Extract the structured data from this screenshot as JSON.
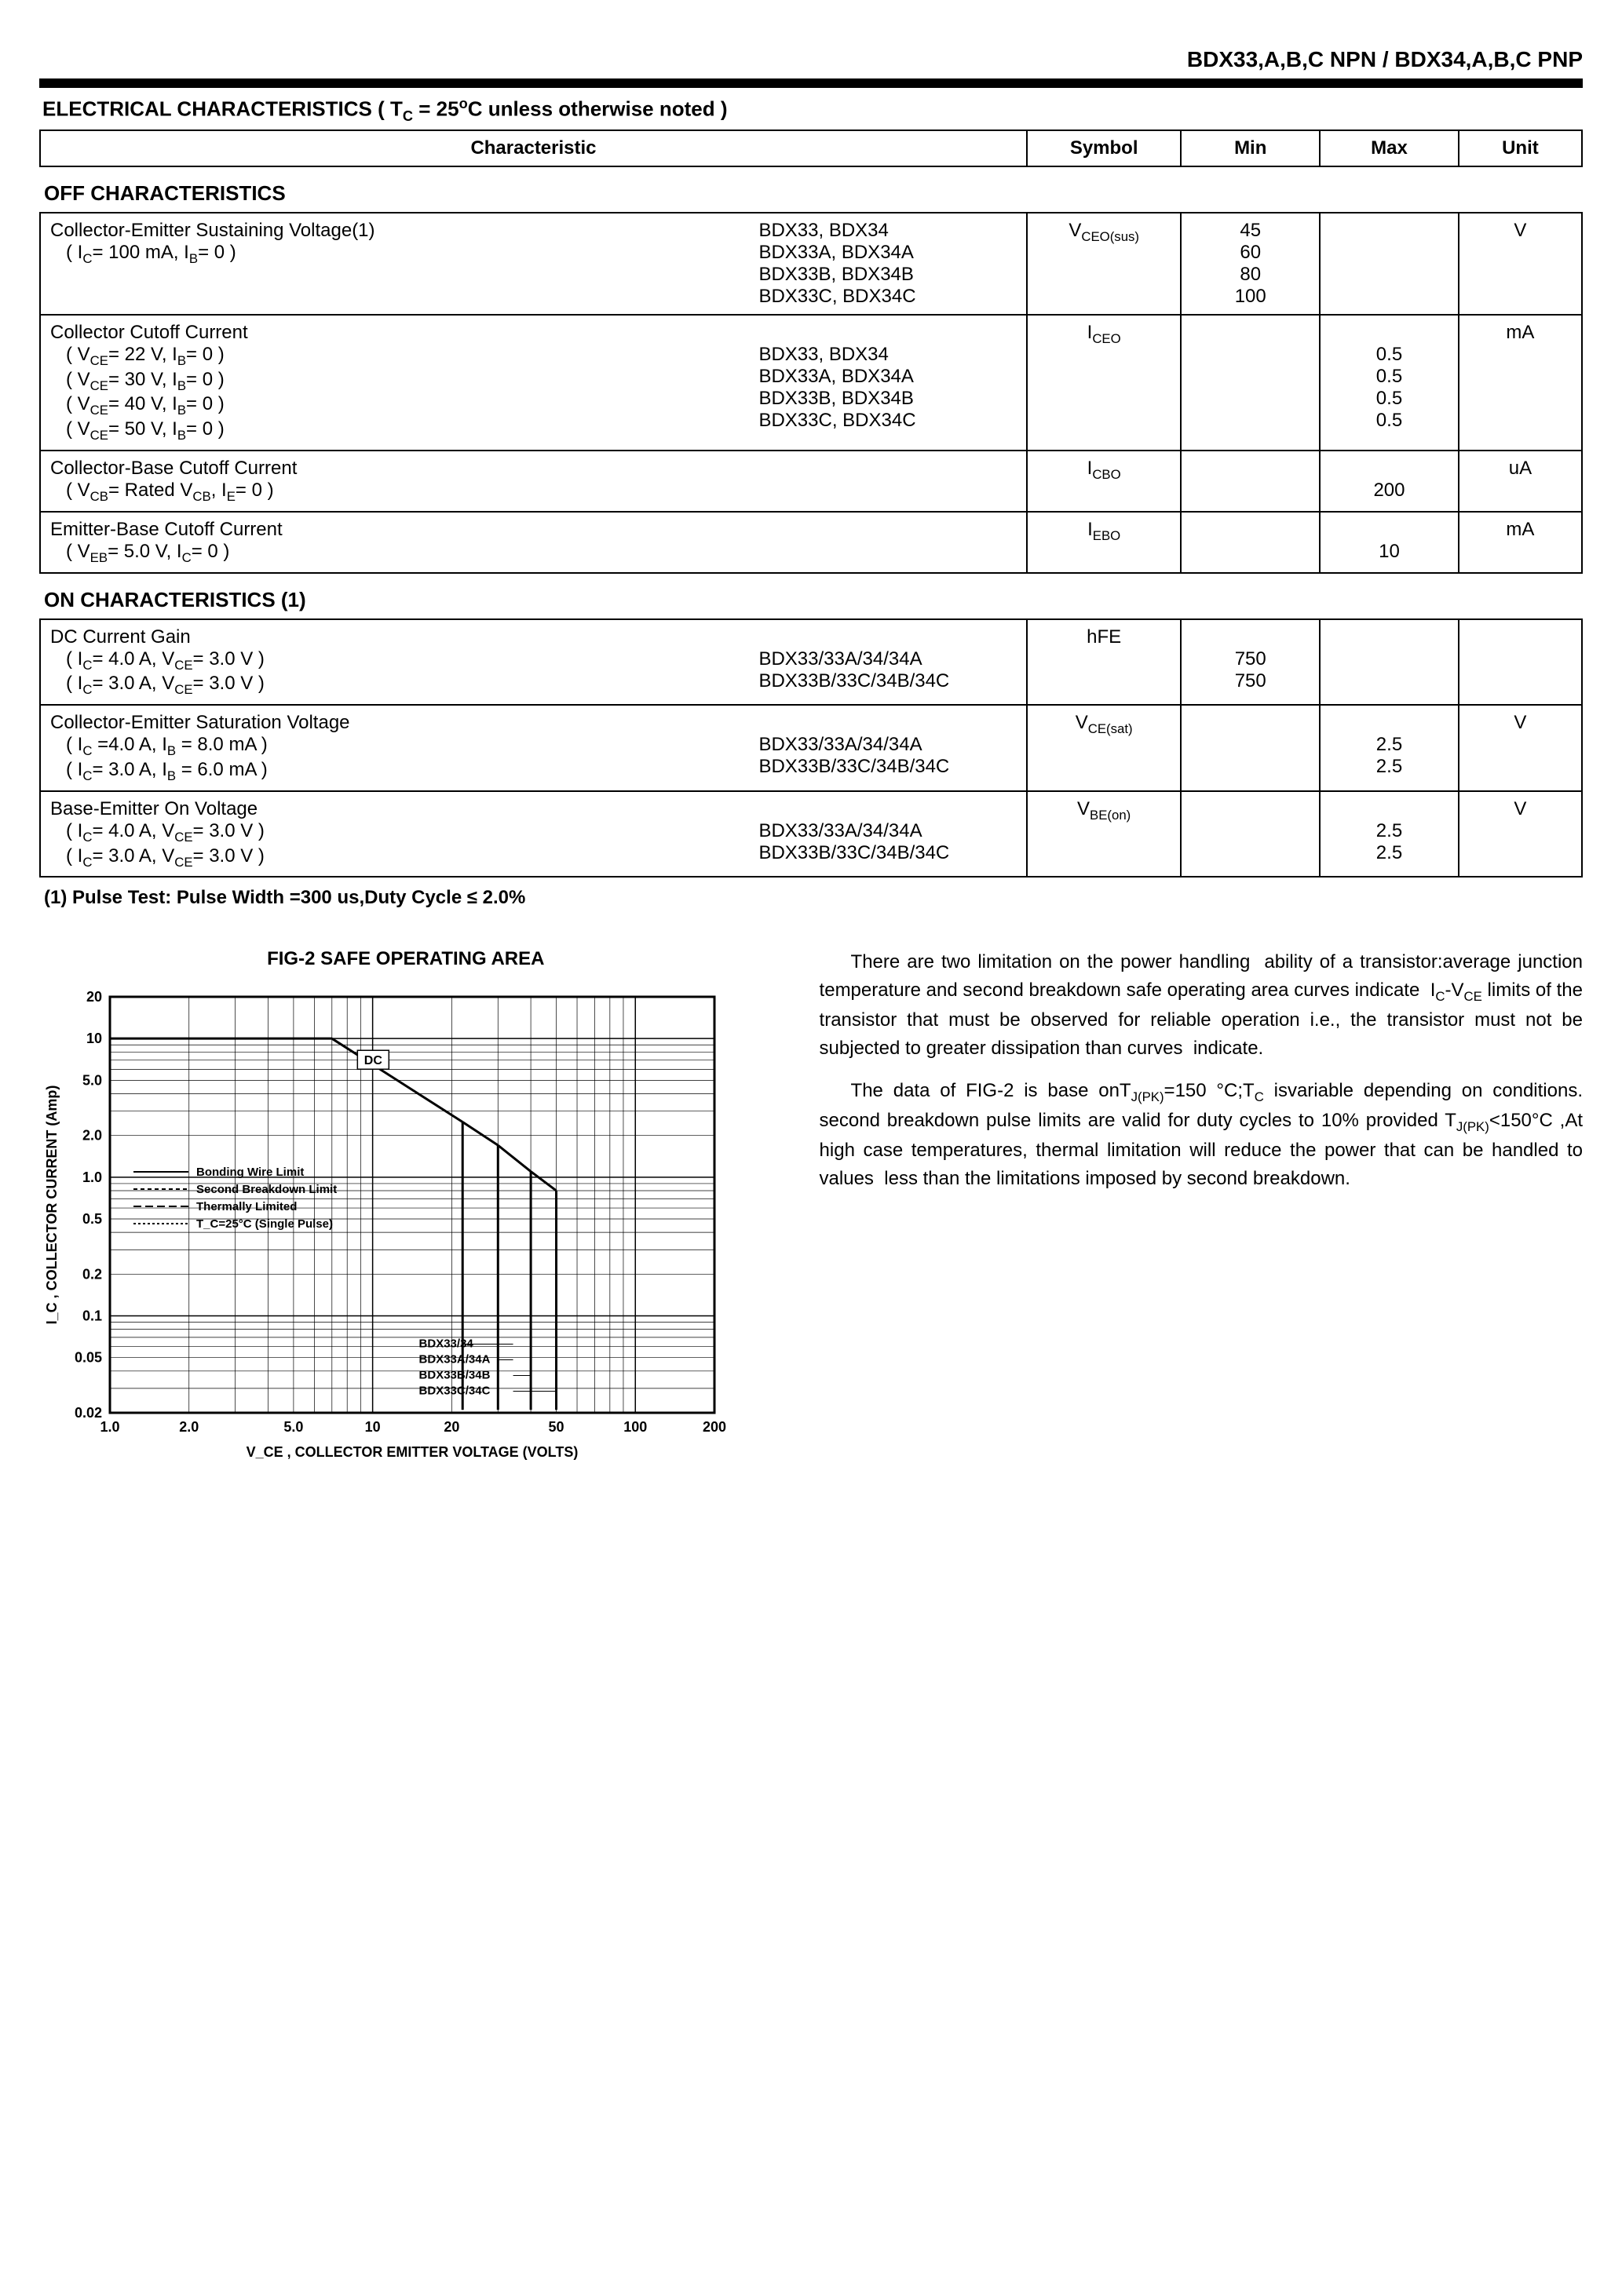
{
  "header": {
    "title": "BDX33,A,B,C  NPN /  BDX34,A,B,C PNP"
  },
  "section": {
    "title_prefix": "ELECTRICAL CHARACTERISTICS ( T",
    "title_mid": " = 25",
    "title_suffix": "C unless otherwise noted )",
    "tc_sub": "C",
    "deg": "o"
  },
  "columns": {
    "characteristic": "Characteristic",
    "symbol": "Symbol",
    "min": "Min",
    "max": "Max",
    "unit": "Unit"
  },
  "off_title": "OFF CHARACTERISTICS",
  "on_title": "ON CHARACTERISTICS (1)",
  "rows": {
    "ceo_sus": {
      "name": "Collector-Emitter Sustaining Voltage(1)",
      "cond": "( I_C= 100 mA, I_B= 0 )",
      "parts": [
        "BDX33,  BDX34",
        "BDX33A, BDX34A",
        "BDX33B, BDX34B",
        "BDX33C, BDX34C"
      ],
      "symbol": "V_CEO(sus)",
      "mins": [
        "45",
        "60",
        "80",
        "100"
      ],
      "unit": "V"
    },
    "iceo": {
      "name": "Collector Cutoff Current",
      "conds": [
        "( V_CE= 22 V, I_B= 0 )",
        "( V_CE= 30 V, I_B= 0 )",
        "( V_CE= 40 V, I_B= 0 )",
        "( V_CE= 50 V, I_B= 0 )"
      ],
      "parts": [
        "BDX33,  BDX34",
        "BDX33A, BDX34A",
        "BDX33B, BDX34B",
        "BDX33C, BDX34C"
      ],
      "symbol": "I_CEO",
      "maxs": [
        "0.5",
        "0.5",
        "0.5",
        "0.5"
      ],
      "unit": "mA"
    },
    "icbo": {
      "name": "Collector-Base Cutoff Current",
      "cond": "( V_CB= Rated  V_CB, I_E= 0 )",
      "symbol": "I_CBO",
      "max": "200",
      "unit": "uA"
    },
    "iebo": {
      "name": "Emitter-Base Cutoff Current",
      "cond": "( V_EB= 5.0 V, I_C= 0 )",
      "symbol": "I_EBO",
      "max": "10",
      "unit": "mA"
    },
    "hfe": {
      "name": "DC Current Gain",
      "conds": [
        "( I_C= 4.0 A, V_CE= 3.0 V )",
        "( I_C= 3.0 A, V_CE= 3.0 V )"
      ],
      "parts": [
        "BDX33/33A/34/34A",
        "BDX33B/33C/34B/34C"
      ],
      "symbol": "hFE",
      "mins": [
        "750",
        "750"
      ]
    },
    "vcesat": {
      "name": "Collector-Emitter Saturation Voltage",
      "conds": [
        "( I_C =4.0 A,  I_B  =  8.0 mA )",
        "( I_C= 3.0 A,  I_B =  6.0 mA )"
      ],
      "parts": [
        "BDX33/33A/34/34A",
        "BDX33B/33C/34B/34C"
      ],
      "symbol": "V_CE(sat)",
      "maxs": [
        "2.5",
        "2.5"
      ],
      "unit": "V"
    },
    "vbeon": {
      "name": "Base-Emitter  On Voltage",
      "conds": [
        "( I_C= 4.0 A, V_CE= 3.0 V )",
        "( I_C= 3.0 A, V_CE= 3.0 V )"
      ],
      "parts": [
        "BDX33/33A/34/34A",
        "BDX33B/33C/34B/34C"
      ],
      "symbol": "V_BE(on)",
      "maxs": [
        "2.5",
        "2.5"
      ],
      "unit": "V"
    }
  },
  "note": "(1) Pulse Test: Pulse Width =300 us,Duty Cycle ≤  2.0%",
  "fig": {
    "title": "FIG-2   SAFE OPERATING AREA",
    "ylabel": "I_C , COLLECTOR CURRENT (Amp)",
    "xlabel": "V_CE , COLLECTOR EMITTER VOLTAGE (VOLTS)",
    "xlim": [
      1.0,
      200
    ],
    "ylim": [
      0.02,
      20
    ],
    "xticks": [
      "1.0",
      "2.0",
      "5.0",
      "10",
      "20",
      "50",
      "100",
      "200"
    ],
    "yticks": [
      "0.02",
      "0.05",
      "0.1",
      "0.2",
      "0.5",
      "1.0",
      "2.0",
      "5.0",
      "10",
      "20"
    ],
    "legend": [
      "Bonding Wire Limit",
      "Second Breakdown Limit",
      "Thermally Limited",
      "T_C=25°C (Single Pulse)"
    ],
    "curve_labels": [
      "BDX33/34",
      "BDX33A/34A",
      "BDX33B/34B",
      "BDX33C/34C"
    ],
    "dc_label": "DC",
    "colors": {
      "bg": "#ffffff",
      "grid": "#000000",
      "line": "#000000",
      "text": "#000000"
    },
    "font_axis": 18,
    "font_label": 18,
    "line_width": 2,
    "dash_patterns": [
      "none",
      "4,3",
      "6,4",
      "2,2"
    ],
    "soabox_curve": [
      [
        1.0,
        10
      ],
      [
        2.7,
        10
      ],
      [
        7,
        10
      ],
      [
        7,
        9.7
      ],
      [
        15,
        4.5
      ],
      [
        22,
        2.5
      ],
      [
        22,
        0.08
      ],
      [
        22,
        0.02
      ]
    ],
    "part_knees": {
      "BDX33/34": [
        [
          22,
          2.5
        ],
        [
          22,
          0.02
        ]
      ],
      "BDX33A/34A": [
        [
          30,
          1.7
        ],
        [
          30,
          0.02
        ]
      ],
      "BDX33B/34B": [
        [
          40,
          1.1
        ],
        [
          40,
          0.02
        ]
      ],
      "BDX33C/34C": [
        [
          50,
          0.8
        ],
        [
          50,
          0.02
        ]
      ]
    }
  },
  "explain": {
    "p1": "There are two limitation on the power handling  ability of a transistor:average junction temperature and second breakdown safe operating area curves indicate  I_C-V_CE limits of the transistor that must be observed for reliable operation i.e., the transistor must not be subjected to greater dissipation than curves  indicate.",
    "p2": "The data of FIG-2 is base onT_J(PK)=150 °C;T_C isvariable depending on conditions. second breakdown pulse limits are valid for duty cycles to 10% provided T_J(PK)<150°C ,At high case temperatures, thermal limitation will reduce the power that can be handled to values  less than the limitations imposed by second breakdown."
  }
}
